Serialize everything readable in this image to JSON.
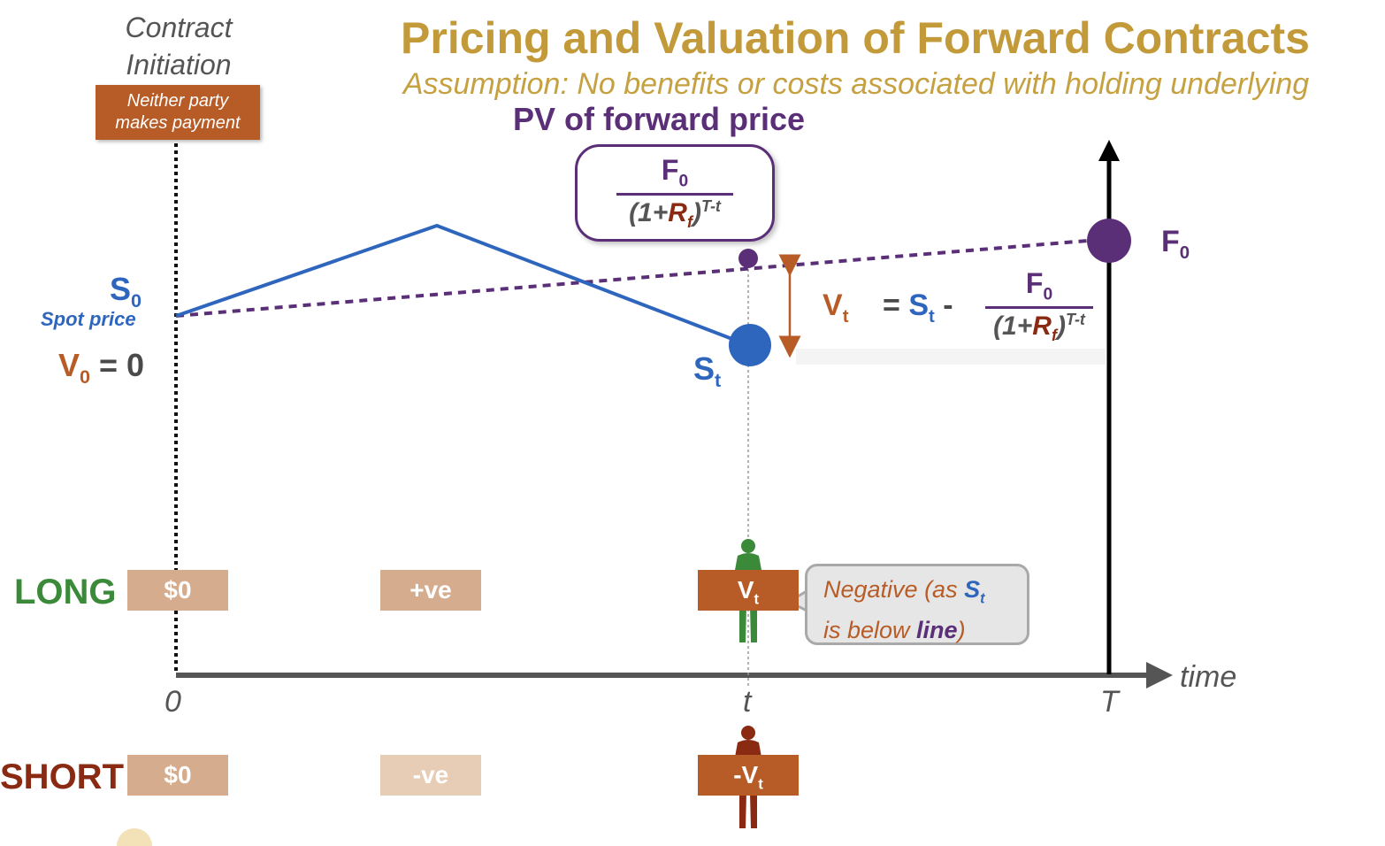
{
  "title": "Pricing and Valuation of Forward Contracts",
  "subtitle": "Assumption: No benefits or costs associated with holding underlying",
  "pv_heading": "PV of forward price",
  "contract_initiation": [
    "Contract",
    "Initiation"
  ],
  "neither_party": [
    "Neither party",
    "makes payment"
  ],
  "formula": {
    "numerator_main": "F",
    "numerator_sub": "0",
    "den_open": "(1+",
    "den_r": "R",
    "den_r_sub": "f",
    "den_close": ")",
    "den_exp": "T-t"
  },
  "spot": {
    "symbol": "S",
    "sub": "0",
    "caption": "Spot price"
  },
  "v0": {
    "symbol": "V",
    "sub": "0",
    "rest": " = 0"
  },
  "st": {
    "symbol": "S",
    "sub": "t"
  },
  "f0_label": {
    "symbol": "F",
    "sub": "0"
  },
  "vt_eq": {
    "v": "V",
    "v_sub": "t",
    "eq": "=",
    "s": "S",
    "s_sub": "t",
    "minus": "-"
  },
  "rows": {
    "long": {
      "label": "LONG",
      "tags": [
        "$0",
        "+ve"
      ],
      "vt": "V",
      "vt_sub": "t"
    },
    "short": {
      "label": "SHORT",
      "tags": [
        "$0",
        "-ve"
      ],
      "vt": "-V",
      "vt_sub": "t"
    }
  },
  "callout": {
    "line1_a": "Negative (as ",
    "line1_s": "S",
    "line1_sub": "t",
    "line2_a": "is below ",
    "line2_b": "line",
    "line2_c": ")"
  },
  "axis": {
    "zero": "0",
    "t": "t",
    "T": "T",
    "time": "time"
  },
  "colors": {
    "gold": "#c29a3a",
    "purple": "#5a2f77",
    "blue": "#2f66bd",
    "orange": "#b85c27",
    "green": "#3a8a3a",
    "maroon": "#8b2a13"
  }
}
